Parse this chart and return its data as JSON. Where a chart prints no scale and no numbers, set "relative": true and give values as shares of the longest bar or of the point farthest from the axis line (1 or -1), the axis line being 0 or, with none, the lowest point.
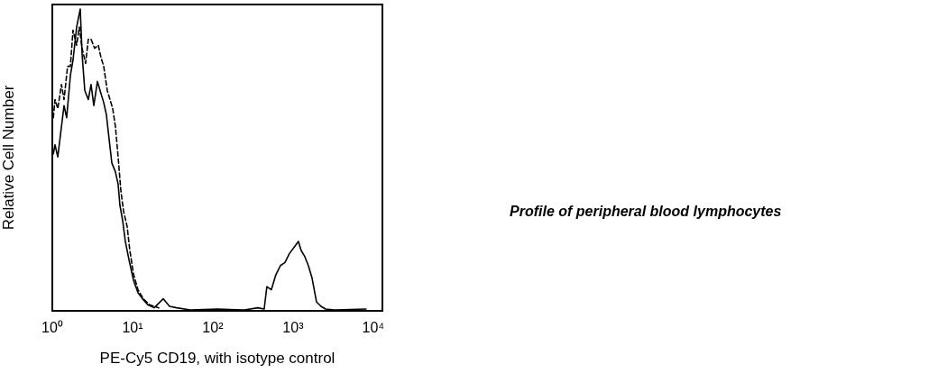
{
  "chart_data": {
    "type": "line",
    "ylabel": "Relative Cell Number",
    "xlabel": "PE-Cy5 CD19, with isotype control",
    "annotations": [
      "Profile of peripheral blood lymphocytes"
    ],
    "relative": true,
    "log": "x",
    "marker": "none",
    "xlim": [
      1,
      13000
    ],
    "xticks": [
      {
        "value": 1,
        "label": "10⁰"
      },
      {
        "value": 10,
        "label": "10¹"
      },
      {
        "value": 100,
        "label": "10²"
      },
      {
        "value": 1000,
        "label": "10³"
      },
      {
        "value": 10000,
        "label": "10⁴"
      }
    ],
    "series": [
      {
        "color": "#000000",
        "line_style": "dashed",
        "x": [
          1.03,
          1.08,
          1.17,
          1.3,
          1.4,
          1.55,
          1.68,
          1.81,
          2.01,
          2.17,
          2.35,
          2.6,
          2.81,
          3.04,
          3.37,
          3.74,
          4.04,
          4.37,
          4.84,
          5.24,
          5.66,
          6.12,
          6.61,
          7.14,
          7.72,
          8.56,
          9.25,
          10.3,
          11.7,
          13.6,
          16.3,
          21.2
        ],
        "values": [
          0.64,
          0.7,
          0.67,
          0.75,
          0.7,
          0.81,
          0.81,
          0.93,
          0.88,
          0.94,
          0.87,
          0.82,
          0.9,
          0.9,
          0.87,
          0.88,
          0.84,
          0.81,
          0.73,
          0.7,
          0.67,
          0.61,
          0.51,
          0.4,
          0.33,
          0.28,
          0.2,
          0.12,
          0.07,
          0.04,
          0.02,
          0.01
        ]
      },
      {
        "color": "#000000",
        "line_style": "solid",
        "x": [
          1.03,
          1.08,
          1.17,
          1.26,
          1.4,
          1.51,
          1.68,
          1.81,
          2.01,
          2.23,
          2.35,
          2.54,
          2.81,
          3.04,
          3.29,
          3.65,
          3.94,
          4.37,
          4.72,
          5.1,
          5.52,
          6.12,
          6.61,
          6.96,
          7.52,
          8.13,
          9.02,
          10.3,
          11.7,
          13.3,
          15.5,
          18.6,
          24.1,
          28.9,
          35.5,
          52.4,
          114,
          247,
          365,
          437,
          472,
          537,
          612,
          697,
          793,
          902,
          1026,
          1167,
          1262,
          1400,
          1552,
          1722,
          1960,
          2230,
          2540,
          3290,
          8130
        ],
        "values": [
          0.52,
          0.55,
          0.51,
          0.58,
          0.68,
          0.64,
          0.78,
          0.83,
          0.94,
          1,
          0.85,
          0.73,
          0.7,
          0.75,
          0.68,
          0.76,
          0.73,
          0.69,
          0.65,
          0.57,
          0.49,
          0.46,
          0.42,
          0.35,
          0.3,
          0.23,
          0.17,
          0.1,
          0.06,
          0.04,
          0.02,
          0.01,
          0.04,
          0.015,
          0.01,
          0.003,
          0.006,
          0.003,
          0.01,
          0.006,
          0.08,
          0.07,
          0.12,
          0.15,
          0.16,
          0.19,
          0.21,
          0.23,
          0.2,
          0.18,
          0.15,
          0.11,
          0.03,
          0.015,
          0.006,
          0.003,
          0.006
        ]
      }
    ]
  }
}
